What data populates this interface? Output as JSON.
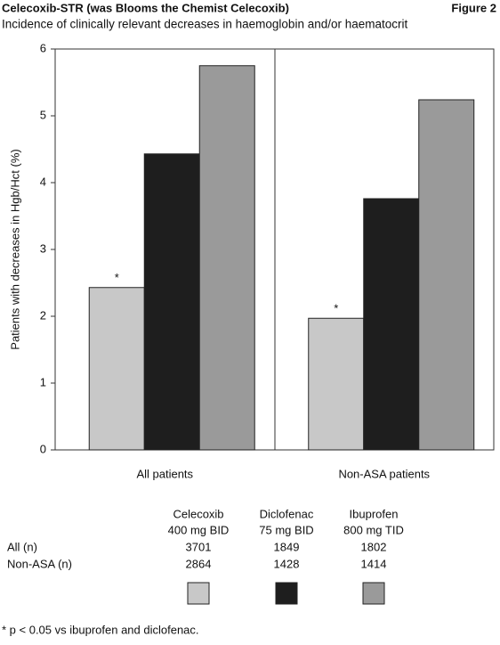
{
  "chart_data": {
    "type": "bar",
    "title": "Celecoxib-STR (was Blooms the Chemist Celecoxib)",
    "figure_label": "Figure 2",
    "subtitle": "Incidence of clinically relevant decreases in haemoglobin and/or haematocrit",
    "y_label": "Patients with decreases in Hgb/Hct (%)",
    "categories": [
      "All patients",
      "Non-ASA patients"
    ],
    "ylim": [
      0,
      6
    ],
    "yticks": [
      0,
      1,
      2,
      3,
      4,
      5,
      6
    ],
    "series": [
      {
        "name": "Celecoxib",
        "dose": "400 mg BID",
        "color": "#c8c8c8",
        "values": [
          2.43,
          1.97
        ],
        "markers": [
          "*",
          "*"
        ],
        "n": [
          3701,
          2864
        ]
      },
      {
        "name": "Diclofenac",
        "dose": "75 mg BID",
        "color": "#1e1e1e",
        "values": [
          4.43,
          3.76
        ],
        "n": [
          1849,
          1428
        ]
      },
      {
        "name": "Ibuprofen",
        "dose": "800 mg TID",
        "color": "#9a9a9a",
        "values": [
          5.75,
          5.24
        ],
        "n": [
          1802,
          1414
        ]
      }
    ],
    "row_labels": [
      "All (n)",
      "Non-ASA (n)"
    ],
    "footnote": "* p < 0.05 vs ibuprofen and diclofenac."
  }
}
